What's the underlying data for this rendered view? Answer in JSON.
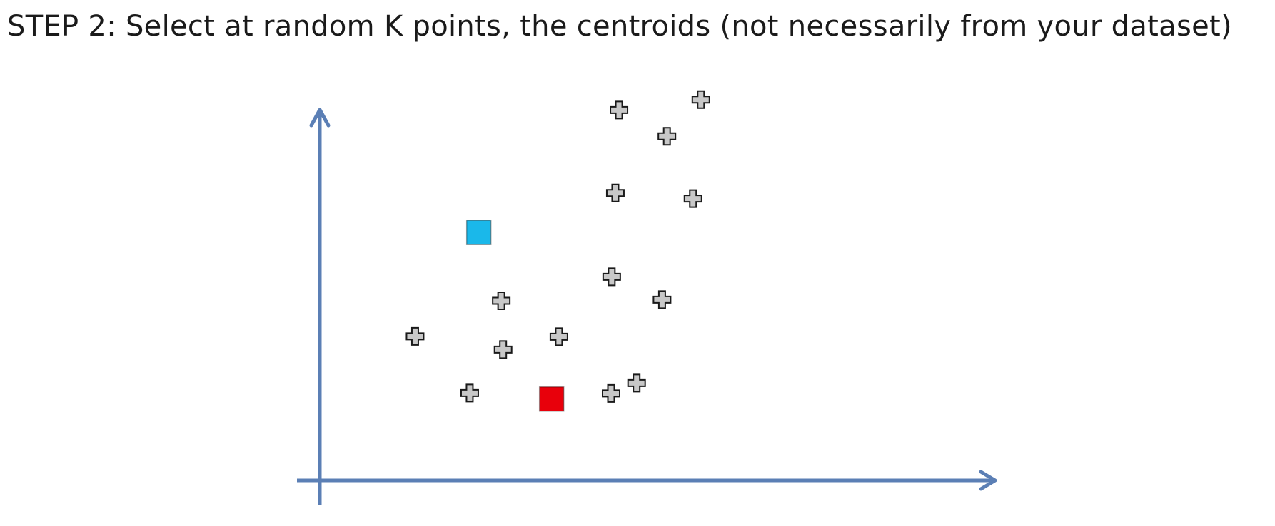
{
  "title": {
    "step_label": "STEP 2",
    "separator": ":",
    "text": " Select at random K points, the centroids (not necessarily from your dataset)"
  },
  "colors": {
    "axis": "#5b7fb5",
    "point_fill": "#c8c8c8",
    "point_stroke": "#1a1a1a",
    "centroid_blue": "#1ab8ea",
    "centroid_red": "#e8000b"
  },
  "chart_data": {
    "type": "scatter",
    "xlim": [
      0,
      100
    ],
    "ylim": [
      0,
      100
    ],
    "grid": false,
    "legend": "none",
    "series": [
      {
        "marker": "plus",
        "color": "#c8c8c8",
        "points": [
          {
            "x": 15.7,
            "y": 36.1
          },
          {
            "x": 24.7,
            "y": 21.9
          },
          {
            "x": 29.9,
            "y": 45.0
          },
          {
            "x": 30.2,
            "y": 32.8
          },
          {
            "x": 39.4,
            "y": 36.0
          },
          {
            "x": 48.1,
            "y": 51.0
          },
          {
            "x": 48.7,
            "y": 72.0
          },
          {
            "x": 49.3,
            "y": 92.8
          },
          {
            "x": 48.0,
            "y": 21.8
          },
          {
            "x": 52.2,
            "y": 24.4
          },
          {
            "x": 56.4,
            "y": 45.3
          },
          {
            "x": 57.2,
            "y": 86.2
          },
          {
            "x": 61.5,
            "y": 70.6
          },
          {
            "x": 62.8,
            "y": 95.4
          }
        ]
      },
      {
        "marker": "square",
        "color": "#1ab8ea",
        "points": [
          {
            "x": 26.2,
            "y": 62.1
          }
        ]
      },
      {
        "marker": "square",
        "color": "#e8000b",
        "points": [
          {
            "x": 38.2,
            "y": 20.4
          }
        ]
      }
    ]
  }
}
